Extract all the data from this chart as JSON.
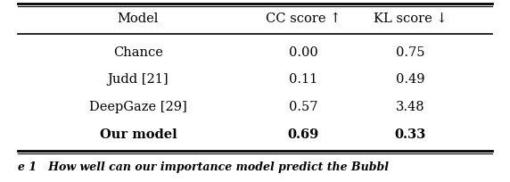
{
  "headers": [
    "Model",
    "CC score ↑",
    "KL score ↓"
  ],
  "rows": [
    [
      "Chance",
      "0.00",
      "0.75"
    ],
    [
      "Judd [21]",
      "0.11",
      "0.49"
    ],
    [
      "DeepGaze [29]",
      "0.57",
      "3.48"
    ],
    [
      "Our model",
      "0.69",
      "0.33"
    ]
  ],
  "bold_row": 3,
  "caption": "e 1   How well can our importance model predict the Bubbl",
  "bg_color": "#ffffff",
  "text_color": "#000000",
  "font_size": 10.5,
  "caption_font_size": 9.0
}
